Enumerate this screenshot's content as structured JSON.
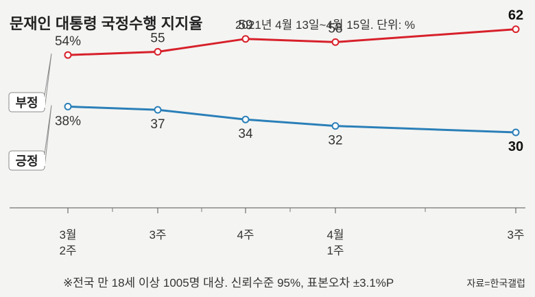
{
  "header": {
    "title": "문재인 대통령 국정수행 지지율",
    "subtitle": "2021년 4월 13일~4월 15일. 단위: %"
  },
  "chart_data": {
    "type": "line",
    "title": "문재인 대통령 국정수행 지지율",
    "subtitle": "2021년 4월 13일~4월 15일. 단위: %",
    "unit": "%",
    "categories": [
      [
        "3월",
        "2주"
      ],
      [
        "3주"
      ],
      [
        "4주"
      ],
      [
        "4월",
        "1주"
      ],
      [
        "3주"
      ]
    ],
    "series": [
      {
        "name": "부정",
        "color": "#d7202a",
        "values": [
          54,
          55,
          59,
          58,
          62
        ],
        "labels": [
          "54%",
          "55",
          "59",
          "58",
          "62"
        ]
      },
      {
        "name": "긍정",
        "color": "#2a7fb8",
        "values": [
          38,
          37,
          34,
          32,
          30
        ],
        "labels": [
          "38%",
          "37",
          "34",
          "32",
          "30"
        ]
      }
    ]
  },
  "footer": {
    "note": "※전국 만 18세 이상 1005명 대상. 신뢰수준 95%, 표본오차 ±3.1%P",
    "source": "자료=한국갤럽"
  }
}
